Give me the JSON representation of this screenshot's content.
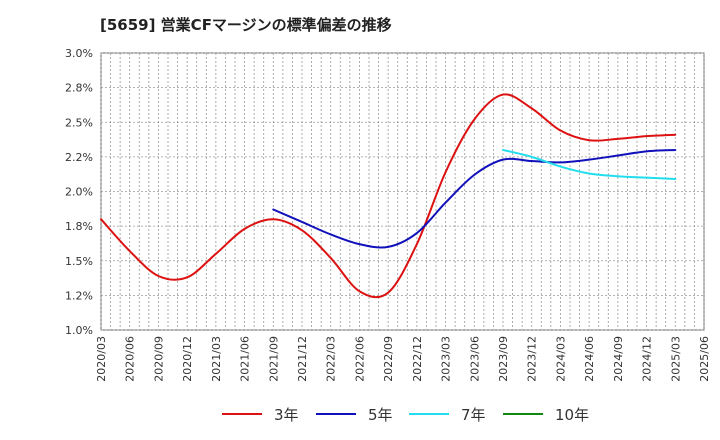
{
  "title": "[5659]  営業CFマージンの標準偏差の推移",
  "chart_data": {
    "type": "line",
    "title": "[5659]  営業CFマージンの標準偏差の推移",
    "xlabel": "",
    "ylabel": "",
    "ylim": [
      1.0,
      3.0
    ],
    "yticks": [
      "1.0%",
      "1.2%",
      "1.5%",
      "1.8%",
      "2.0%",
      "2.2%",
      "2.5%",
      "2.8%",
      "3.0%"
    ],
    "xticks": [
      "2020/03",
      "2020/06",
      "2020/09",
      "2020/12",
      "2021/03",
      "2021/06",
      "2021/09",
      "2021/12",
      "2022/03",
      "2022/06",
      "2022/09",
      "2022/12",
      "2023/03",
      "2023/06",
      "2023/09",
      "2023/12",
      "2024/03",
      "2024/06",
      "2024/09",
      "2024/12",
      "2025/03",
      "2025/06"
    ],
    "grid": true,
    "legend_position": "bottom",
    "series": [
      {
        "name": "3年",
        "color": "#dd1111",
        "points": [
          [
            "2020/03",
            1.8
          ],
          [
            "2020/06",
            1.57
          ],
          [
            "2020/09",
            1.39
          ],
          [
            "2020/12",
            1.38
          ],
          [
            "2021/03",
            1.55
          ],
          [
            "2021/06",
            1.73
          ],
          [
            "2021/09",
            1.8
          ],
          [
            "2021/12",
            1.72
          ],
          [
            "2022/03",
            1.52
          ],
          [
            "2022/06",
            1.28
          ],
          [
            "2022/09",
            1.27
          ],
          [
            "2022/12",
            1.62
          ],
          [
            "2023/03",
            2.14
          ],
          [
            "2023/06",
            2.52
          ],
          [
            "2023/09",
            2.7
          ],
          [
            "2023/12",
            2.6
          ],
          [
            "2024/03",
            2.44
          ],
          [
            "2024/06",
            2.37
          ],
          [
            "2024/09",
            2.38
          ],
          [
            "2024/12",
            2.4
          ],
          [
            "2025/03",
            2.41
          ]
        ]
      },
      {
        "name": "5年",
        "color": "#1111bb",
        "points": [
          [
            "2021/09",
            1.87
          ],
          [
            "2021/12",
            1.78
          ],
          [
            "2022/03",
            1.69
          ],
          [
            "2022/06",
            1.62
          ],
          [
            "2022/09",
            1.6
          ],
          [
            "2022/12",
            1.7
          ],
          [
            "2023/03",
            1.92
          ],
          [
            "2023/06",
            2.12
          ],
          [
            "2023/09",
            2.23
          ],
          [
            "2023/12",
            2.22
          ],
          [
            "2024/03",
            2.21
          ],
          [
            "2024/06",
            2.23
          ],
          [
            "2024/09",
            2.26
          ],
          [
            "2024/12",
            2.29
          ],
          [
            "2025/03",
            2.3
          ]
        ]
      },
      {
        "name": "7年",
        "color": "#22ddee",
        "points": [
          [
            "2023/09",
            2.3
          ],
          [
            "2023/12",
            2.25
          ],
          [
            "2024/03",
            2.18
          ],
          [
            "2024/06",
            2.13
          ],
          [
            "2024/09",
            2.11
          ],
          [
            "2024/12",
            2.1
          ],
          [
            "2025/03",
            2.09
          ]
        ]
      },
      {
        "name": "10年",
        "color": "#118811",
        "points": []
      }
    ]
  }
}
